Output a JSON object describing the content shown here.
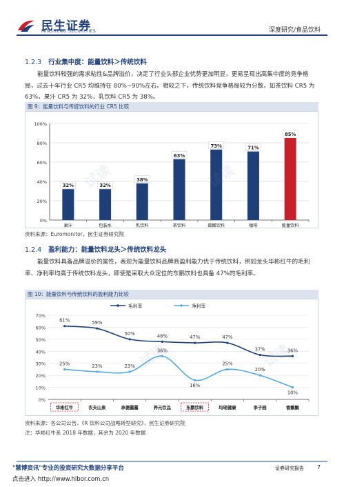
{
  "header": {
    "logo_cn": "民生证券",
    "logo_en": "MINSHENG SECURITIES",
    "right_text": "深度研究/食品饮料"
  },
  "section1": {
    "number": "1.2.3",
    "title": "行业集中度：能量饮料＞传统饮料",
    "para1": "能量饮料较强的需求粘性&品牌溢价，决定了行业头部企业优势更加明显，更易呈现出高集中度的竞争格局，过去十年行业 CR5 均维持在 80%~90%左右。相较之下，传统饮料竞争格局较为分散，如茶饮料 CR5 为 63%，果汁 CR5 为 32%，乳饮料 CR5 为 38%。"
  },
  "figure9": {
    "title": "图 9：能量饮料与传统饮料的行业 CR5 比较",
    "source": "资料来源：Euromonitor，民生证券研究院"
  },
  "chart_data": [
    {
      "type": "bar",
      "categories": [
        "果汁",
        "包装水",
        "乳饮料",
        "茶饮料",
        "碳酸饮料",
        "咖啡",
        "能量饮料"
      ],
      "values": [
        32,
        32,
        38,
        63,
        73,
        71,
        85
      ],
      "labels": [
        "32%",
        "32%",
        "38%",
        "63%",
        "73%",
        "71%",
        "85%"
      ],
      "highlight_index": 6,
      "ylim": [
        0,
        100
      ],
      "yticks": [
        "0%",
        "20%",
        "40%",
        "60%",
        "80%",
        "100%"
      ],
      "colors": {
        "normal": "#1f3f78",
        "highlight": "#c8202a"
      }
    },
    {
      "type": "line",
      "categories": [
        "华彬红牛",
        "农夫山泉",
        "承德露露",
        "养元饮品",
        "东鹏饮料",
        "均瑶健康",
        "李子园",
        "香飘飘"
      ],
      "series": [
        {
          "name": "毛利率",
          "values": [
            61,
            59,
            50,
            48,
            47,
            47,
            37,
            36
          ],
          "labels": [
            "61%",
            "59%",
            "50%",
            "48%",
            "47%",
            "47%",
            "37%",
            "36%"
          ],
          "color": "#1f3f78"
        },
        {
          "name": "净利率",
          "values": [
            25,
            23,
            23,
            36,
            16,
            25,
            20,
            10
          ],
          "labels": [
            "25%",
            "23%",
            "23%",
            "36%",
            "16%",
            "25%",
            "20%",
            "10%"
          ],
          "color": "#55a7e0"
        }
      ],
      "ylim": [
        0,
        70
      ],
      "yticks": [
        "0%",
        "10%",
        "20%",
        "30%",
        "40%",
        "50%",
        "60%",
        "70%"
      ],
      "highlighted_categories": [
        0,
        4
      ]
    }
  ],
  "section2": {
    "number": "1.2.4",
    "title": "盈利能力：能量饮料龙头＞传统饮料龙头",
    "para1": "能量饮料具备品牌溢价的属性，表现为能量饮料品牌商盈利能力优于传统饮料，例如龙头华彬红牛的毛利率、净利率均高于传统饮料龙头，即使是采取大众定位的东鹏饮料也具备 47%的毛利率。"
  },
  "figure10": {
    "title": "图 10：能量饮料与传统饮料的盈利能力比较",
    "source": "资料来源：各公司公告，《R 饮料公司战略转型研究》，民生证券研究院",
    "note": "注：华彬红牛系 2018 年数据，其余为 2020 年数据"
  },
  "footer": {
    "left": "\"慧博资讯\"专业的投资研究大数据分享平台",
    "left2": "点击进入 http://www.hibor.com.cn",
    "right": "证券研究报告",
    "page": "7"
  },
  "watermark": "试读"
}
